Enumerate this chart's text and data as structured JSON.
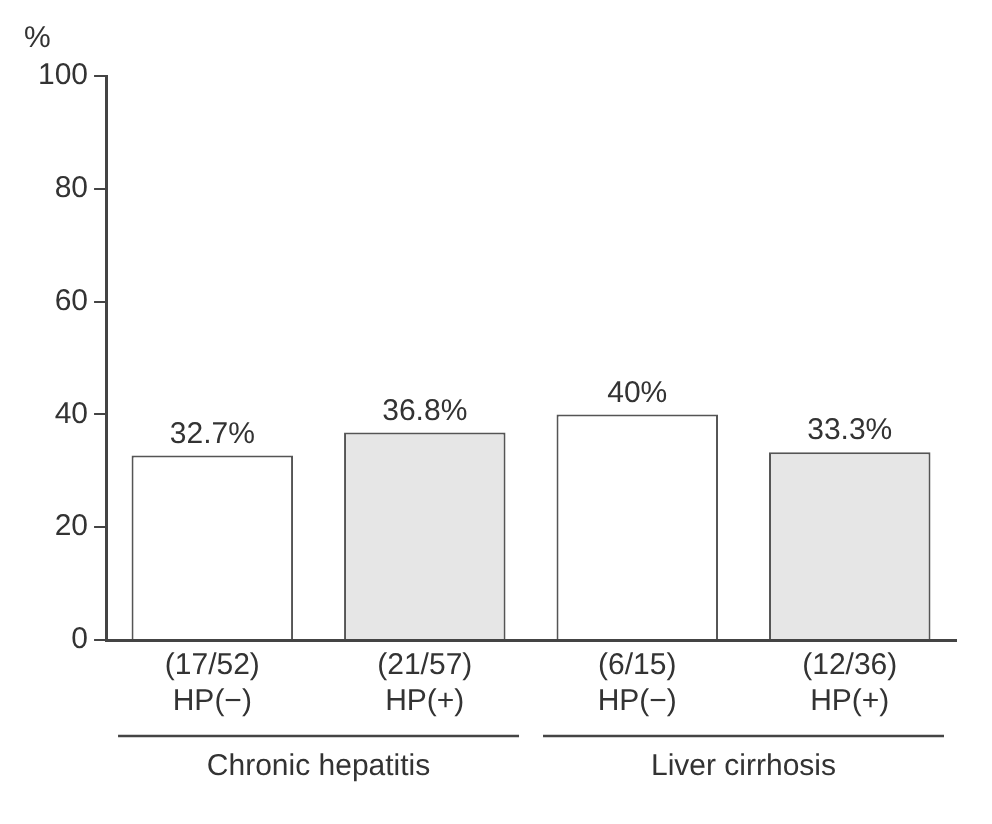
{
  "chart_data": {
    "type": "bar",
    "ylabel": "%",
    "categories": [
      "(17/52)\nHP(−)",
      "(21/57)\nHP(+)",
      "(6/15)\nHP(−)",
      "(12/36)\nHP(+)"
    ],
    "values": [
      32.7,
      36.8,
      40,
      33.3
    ],
    "colors": [
      "#ffffff",
      "#e6e6e6",
      "#ffffff",
      "#e6e6e6"
    ],
    "value_labels": [
      "32.7%",
      "36.8%",
      "40%",
      "33.3%"
    ],
    "annotations": [
      "Chronic hepatitis",
      "Liver cirrhosis"
    ],
    "ylim": [
      0,
      100
    ],
    "yticks": [
      0,
      20,
      40,
      60,
      80,
      100
    ],
    "grid": false,
    "legend": false
  }
}
